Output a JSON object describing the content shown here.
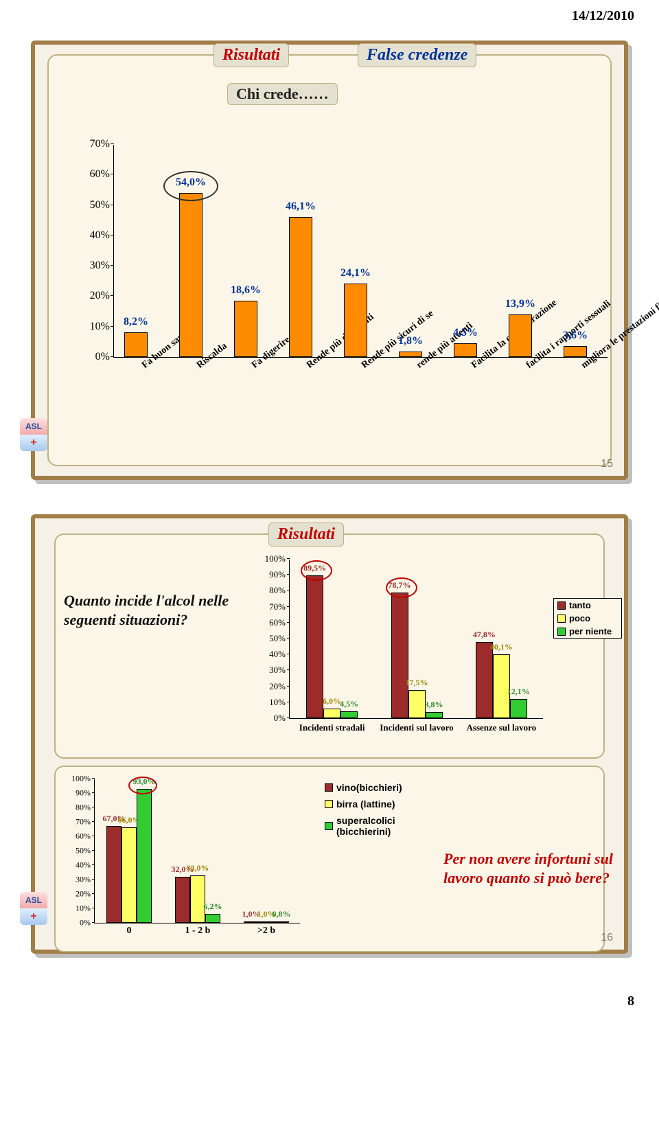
{
  "page": {
    "date": "14/12/2010",
    "number": "8"
  },
  "slide15": {
    "number": "15",
    "title_main": "Risultati",
    "title_sub": "False credenze",
    "subtitle": "Chi crede……",
    "chart": {
      "y_ticks": [
        "0%",
        "10%",
        "20%",
        "30%",
        "40%",
        "50%",
        "60%",
        "70%"
      ],
      "y_max": 70,
      "bar_color": "#ff8c00",
      "value_color": "#003399",
      "categories": [
        "Fa buon sangue",
        "Riscalda",
        "Fa digerire",
        "Rende più disinvolti",
        "Rende più sicuri di se",
        "rende più attenti",
        "Facilita la concentrazione",
        "facilita i rapporti sessuali",
        "migliora le prestazioni fisiche"
      ],
      "values": [
        8.2,
        54.0,
        18.6,
        46.1,
        24.1,
        1.8,
        4.5,
        13.9,
        3.6
      ],
      "labels": [
        "8,2%",
        "54,0%",
        "18,6%",
        "46,1%",
        "24,1%",
        "1,8%",
        "4,5%",
        "13,9%",
        "3,6%"
      ]
    }
  },
  "slide16": {
    "number": "16",
    "title_main": "Risultati",
    "question": "Quanto incide l'alcol nelle seguenti situazioni?",
    "conclusion": "Per non avere infortuni sul lavoro quanto si può bere?",
    "top_chart": {
      "y_ticks": [
        "0%",
        "10%",
        "20%",
        "30%",
        "40%",
        "50%",
        "60%",
        "70%",
        "80%",
        "90%",
        "100%"
      ],
      "y_max": 100,
      "categories": [
        "Incidenti stradali",
        "Incidenti sul lavoro",
        "Assenze sul lavoro"
      ],
      "series": [
        {
          "name": "tanto",
          "color": "#9c2b2b",
          "values": [
            89.5,
            78.7,
            47.8
          ],
          "labels": [
            "89,5%",
            "78,7%",
            "47,8%"
          ]
        },
        {
          "name": "poco",
          "color": "#ffff66",
          "values": [
            6.0,
            17.5,
            40.1
          ],
          "labels": [
            "6,0%",
            "17,5%",
            "40,1%"
          ]
        },
        {
          "name": "per niente",
          "color": "#33cc33",
          "values": [
            4.5,
            3.8,
            12.1
          ],
          "labels": [
            "4,5%",
            "3,8%",
            "12,1%"
          ]
        }
      ]
    },
    "bottom_chart": {
      "y_ticks": [
        "0%",
        "10%",
        "20%",
        "30%",
        "40%",
        "50%",
        "60%",
        "70%",
        "80%",
        "90%",
        "100%"
      ],
      "y_max": 100,
      "categories": [
        "0",
        "1 - 2 b",
        ">2 b"
      ],
      "series": [
        {
          "name": "vino(bicchieri)",
          "color": "#9c2b2b",
          "values": [
            67.0,
            32.0,
            1.0
          ],
          "labels": [
            "67,0%",
            "32,0%",
            "1,0%"
          ]
        },
        {
          "name": "birra (lattine)",
          "color": "#ffff66",
          "values": [
            66.0,
            33.0,
            1.0
          ],
          "labels": [
            "66,0%",
            "33,0%",
            "1,0%"
          ]
        },
        {
          "name": "superalcolici (bicchierini)",
          "color": "#33cc33",
          "values": [
            93.0,
            6.2,
            0.8
          ],
          "labels": [
            "93,0%",
            "6,2%",
            "0,8%"
          ]
        }
      ]
    }
  }
}
